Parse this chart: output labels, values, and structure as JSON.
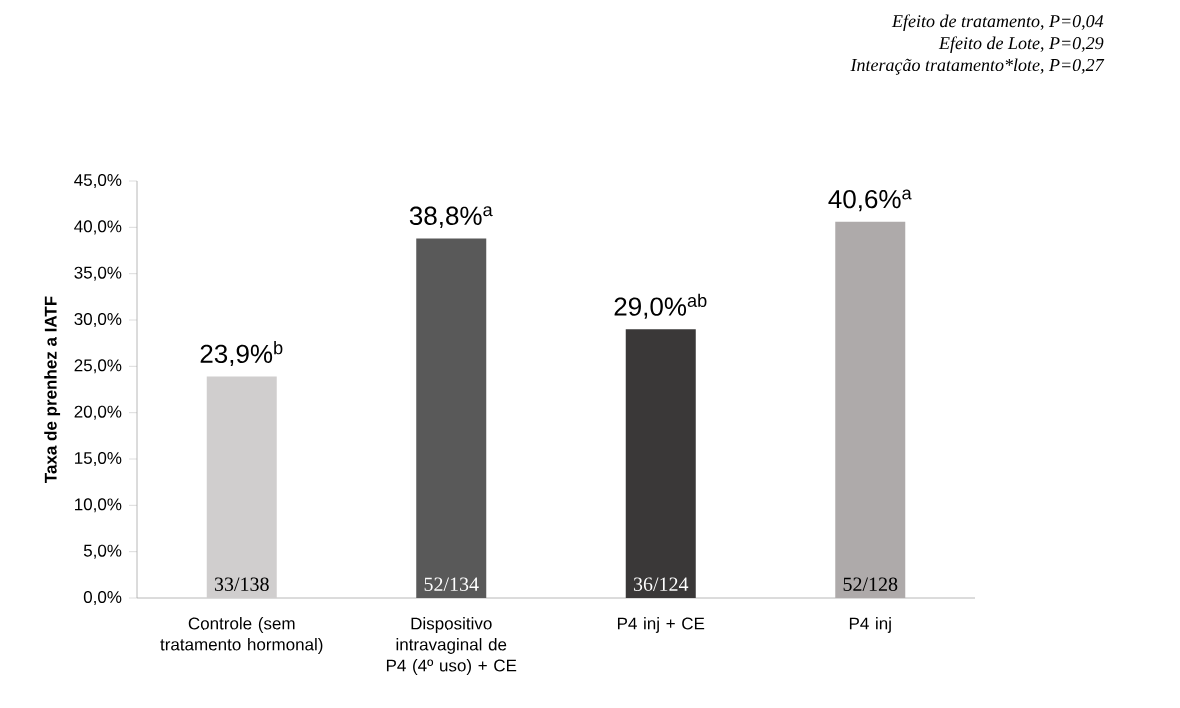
{
  "chart_data": {
    "type": "bar",
    "ylabel": "Taxa de prenhez a IATF",
    "categories": [
      "Controle (sem tratamento hormonal)",
      "Dispositivo intravaginal de P4 (4º uso) + CE",
      "P4 inj + CE",
      "P4 inj"
    ],
    "values": [
      23.9,
      38.8,
      29.0,
      40.6
    ],
    "colors": [
      "#d0cece",
      "#595959",
      "#3a3838",
      "#aeaaaa"
    ],
    "value_labels": [
      "23,9%$^{b}$",
      "38,8%$^{a}$",
      "29,0%$^{ab}$",
      "40,6%$^{a}$"
    ],
    "ylim": [
      0,
      45
    ],
    "yticks": [
      {
        "value": 0,
        "label": "0,0%"
      },
      {
        "value": 5,
        "label": "5,0%"
      },
      {
        "value": 10,
        "label": "10,0%"
      },
      {
        "value": 15,
        "label": "15,0%"
      },
      {
        "value": 20,
        "label": "20,0%"
      },
      {
        "value": 25,
        "label": "25,0%"
      },
      {
        "value": 30,
        "label": "30,0%"
      },
      {
        "value": 35,
        "label": "35,0%"
      },
      {
        "value": 40,
        "label": "40,0%"
      },
      {
        "value": 45,
        "label": "45,0%"
      }
    ],
    "grid": false,
    "annotations": [
      "Efeito de tratamento, P=0,04",
      "Efeito de Lote, P=0,29",
      "Interação tratamento*lote, P=0,27",
      "33/138",
      "52/134",
      "36/124",
      "52/128"
    ]
  }
}
